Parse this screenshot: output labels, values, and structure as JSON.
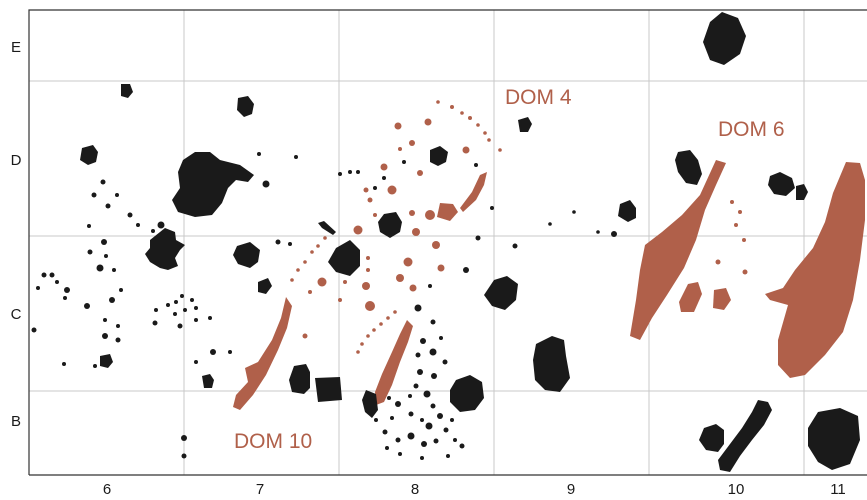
{
  "grid": {
    "row_labels": [
      "E",
      "D",
      "C",
      "B"
    ],
    "column_labels": [
      "6",
      "7",
      "8",
      "9",
      "10",
      "11"
    ]
  },
  "houses": [
    {
      "label": "DOM 4"
    },
    {
      "label": "DOM 6"
    },
    {
      "label": "DOM 10"
    }
  ],
  "colors": {
    "house_features": "#b0604a",
    "pits": "#1a1a1a",
    "grid_lines": "#c8c8c8",
    "frame": "#333333"
  }
}
